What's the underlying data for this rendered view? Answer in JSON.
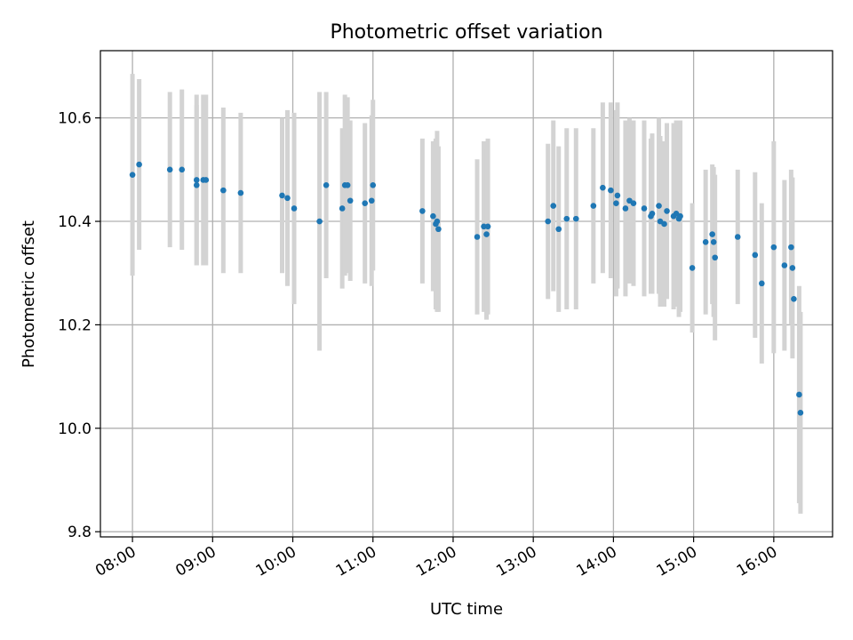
{
  "chart_data": {
    "type": "scatter",
    "title": "Photometric offset variation",
    "xlabel": "UTC time",
    "ylabel": "Photometric offset",
    "xlim": [
      "07:36",
      "16:44"
    ],
    "ylim": [
      9.79,
      10.73
    ],
    "x_ticks": [
      "08:00",
      "09:00",
      "10:00",
      "11:00",
      "12:00",
      "13:00",
      "14:00",
      "15:00",
      "16:00"
    ],
    "y_ticks": [
      "9.8",
      "10.0",
      "10.2",
      "10.4",
      "10.6"
    ],
    "grid": true,
    "colors": {
      "points": "#1f77b4",
      "error_bars": "#d3d3d3",
      "grid": "#b0b0b0"
    },
    "series": [
      {
        "x": [
          "08:00",
          "08:05",
          "08:28",
          "08:37",
          "08:48",
          "08:48",
          "08:53",
          "08:55",
          "09:08",
          "09:21",
          "09:52",
          "09:56",
          "10:01",
          "10:20",
          "10:25",
          "10:37",
          "10:39",
          "10:41",
          "10:43",
          "10:54",
          "10:59",
          "11:00",
          "11:37",
          "11:45",
          "11:47",
          "11:48",
          "11:49",
          "12:18",
          "12:23",
          "12:25",
          "12:26",
          "13:11",
          "13:15",
          "13:19",
          "13:25",
          "13:32",
          "13:45",
          "13:52",
          "13:58",
          "14:02",
          "14:03",
          "14:09",
          "14:12",
          "14:15",
          "14:23",
          "14:28",
          "14:29",
          "14:34",
          "14:35",
          "14:38",
          "14:40",
          "14:45",
          "14:47",
          "14:49",
          "14:50",
          "14:59",
          "15:09",
          "15:14",
          "15:15",
          "15:16",
          "15:33",
          "15:46",
          "15:51",
          "16:00",
          "16:08",
          "16:13",
          "16:14",
          "16:15",
          "16:19",
          "16:20"
        ],
        "y": [
          10.49,
          10.51,
          10.5,
          10.5,
          10.47,
          10.48,
          10.48,
          10.48,
          10.46,
          10.455,
          10.45,
          10.445,
          10.425,
          10.4,
          10.47,
          10.425,
          10.47,
          10.47,
          10.44,
          10.435,
          10.44,
          10.47,
          10.42,
          10.41,
          10.395,
          10.4,
          10.385,
          10.37,
          10.39,
          10.375,
          10.39,
          10.4,
          10.43,
          10.385,
          10.405,
          10.405,
          10.43,
          10.465,
          10.46,
          10.435,
          10.45,
          10.425,
          10.44,
          10.435,
          10.425,
          10.41,
          10.415,
          10.43,
          10.4,
          10.395,
          10.42,
          10.41,
          10.415,
          10.405,
          10.41,
          10.31,
          10.36,
          10.375,
          10.36,
          10.33,
          10.37,
          10.335,
          10.28,
          10.35,
          10.315,
          10.35,
          10.31,
          10.25,
          10.065,
          10.03
        ],
        "y_err": [
          0.195,
          0.165,
          0.15,
          0.155,
          0.155,
          0.165,
          0.165,
          0.165,
          0.16,
          0.155,
          0.15,
          0.17,
          0.185,
          0.25,
          0.18,
          0.155,
          0.175,
          0.17,
          0.155,
          0.155,
          0.165,
          0.165,
          0.14,
          0.145,
          0.165,
          0.175,
          0.16,
          0.15,
          0.165,
          0.165,
          0.17,
          0.15,
          0.165,
          0.16,
          0.175,
          0.175,
          0.15,
          0.165,
          0.17,
          0.18,
          0.18,
          0.17,
          0.16,
          0.16,
          0.17,
          0.15,
          0.155,
          0.17,
          0.165,
          0.16,
          0.17,
          0.18,
          0.18,
          0.19,
          0.185,
          0.125,
          0.14,
          0.135,
          0.145,
          0.16,
          0.13,
          0.16,
          0.155,
          0.205,
          0.165,
          0.15,
          0.175,
          0.0,
          0.21,
          0.195
        ]
      }
    ]
  }
}
